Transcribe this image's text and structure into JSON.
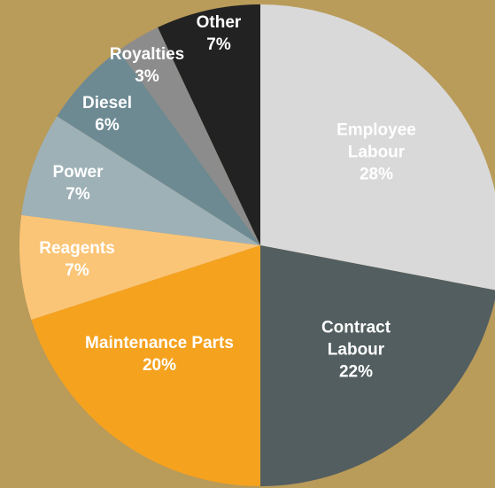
{
  "chart_data": {
    "type": "pie",
    "categories": [
      "Employee Labour",
      "Contract Labour",
      "Maintenance Parts",
      "Reagents",
      "Power",
      "Diesel",
      "Royalties",
      "Other"
    ],
    "values": [
      28,
      22,
      20,
      7,
      7,
      6,
      3,
      7
    ],
    "value_labels": [
      "28%",
      "22%",
      "20%",
      "7%",
      "7%",
      "6%",
      "3%",
      "7%"
    ],
    "colors": [
      "#d9d9d9",
      "#535e60",
      "#f5a21f",
      "#fbc577",
      "#9eb1b7",
      "#6d8a93",
      "#8c8c8c",
      "#222222"
    ]
  }
}
